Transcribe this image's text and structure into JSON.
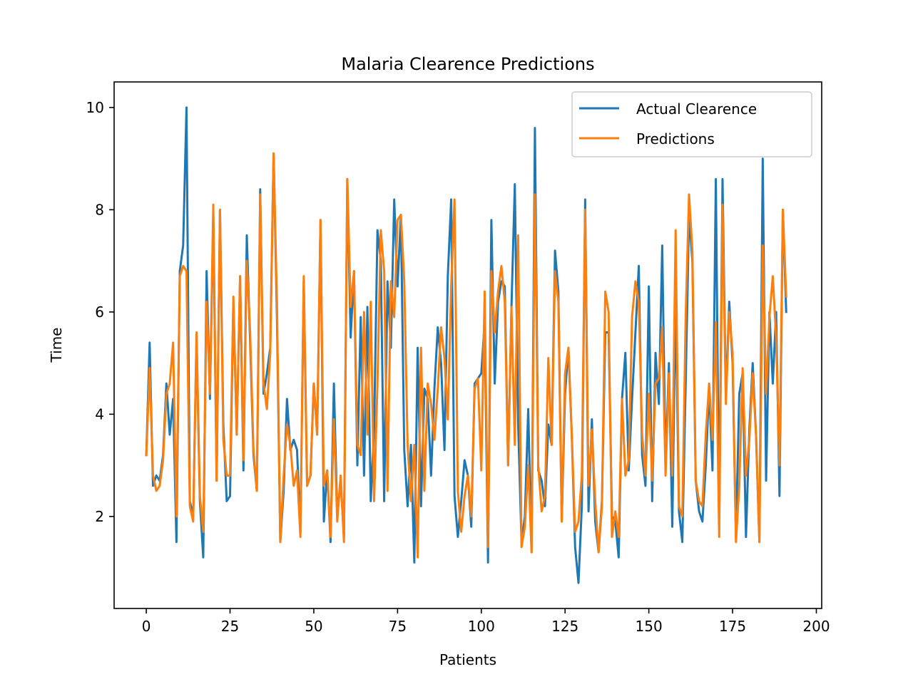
{
  "chart_data": {
    "type": "line",
    "title": "Malaria Clearence Predictions",
    "xlabel": "Patients",
    "ylabel": "Time",
    "xlim": [
      -9.6,
      201.6
    ],
    "ylim": [
      0.2,
      10.5
    ],
    "xticks": [
      0,
      25,
      50,
      75,
      100,
      125,
      150,
      175,
      200
    ],
    "yticks": [
      2,
      4,
      6,
      8,
      10
    ],
    "grid": false,
    "legend_position": "top-right",
    "series": [
      {
        "name": "Actual Clearence",
        "color": "#1f77b4",
        "values": [
          3.2,
          5.4,
          2.6,
          2.8,
          2.7,
          3.2,
          4.6,
          3.6,
          4.3,
          1.5,
          6.8,
          7.3,
          10.0,
          2.3,
          2.0,
          5.5,
          2.3,
          1.2,
          6.8,
          4.3,
          7.9,
          2.7,
          8.0,
          3.8,
          2.3,
          2.4,
          6.2,
          3.6,
          6.7,
          2.9,
          7.5,
          5.4,
          3.2,
          2.5,
          8.4,
          4.4,
          4.8,
          5.3,
          9.1,
          5.9,
          1.5,
          2.5,
          4.3,
          3.3,
          3.5,
          3.3,
          1.7,
          6.6,
          2.6,
          2.8,
          4.6,
          3.6,
          7.8,
          1.9,
          2.9,
          1.5,
          4.6,
          2.0,
          2.7,
          1.6,
          8.6,
          5.5,
          6.8,
          3.0,
          5.9,
          2.8,
          6.1,
          2.3,
          3.7,
          7.6,
          7.0,
          2.3,
          6.6,
          5.3,
          8.2,
          6.5,
          7.9,
          3.3,
          2.2,
          3.4,
          1.1,
          5.3,
          2.2,
          4.5,
          4.3,
          2.8,
          4.5,
          5.7,
          5.0,
          3.3,
          6.7,
          8.2,
          2.4,
          1.6,
          2.3,
          3.1,
          2.8,
          1.8,
          4.6,
          4.7,
          4.8,
          5.8,
          1.1,
          7.8,
          4.6,
          6.2,
          6.6,
          6.5,
          3.0,
          6.1,
          8.5,
          3.8,
          1.5,
          2.0,
          4.1,
          1.3,
          9.6,
          2.9,
          2.7,
          2.2,
          3.8,
          3.4,
          7.2,
          6.4,
          1.9,
          4.4,
          5.3,
          3.6,
          1.4,
          0.7,
          2.2,
          8.2,
          2.1,
          3.9,
          1.9,
          1.3,
          2.3,
          5.6,
          5.6,
          2.0,
          1.9,
          1.2,
          4.3,
          5.2,
          2.9,
          4.3,
          5.6,
          6.9,
          3.2,
          2.6,
          6.5,
          2.3,
          5.2,
          4.2,
          7.3,
          3.0,
          5.0,
          1.8,
          6.3,
          2.1,
          1.5,
          4.6,
          7.9,
          7.0,
          2.7,
          2.1,
          1.9,
          3.0,
          4.5,
          2.9,
          8.6,
          1.9,
          8.6,
          4.3,
          6.2,
          5.0,
          1.6,
          4.4,
          4.8,
          1.6,
          3.7,
          5.0,
          3.6,
          1.5,
          9.0,
          2.7,
          6.0,
          4.6,
          6.0,
          2.4,
          8.0,
          6.0
        ]
      },
      {
        "name": "Predictions",
        "color": "#ff7f0e",
        "values": [
          3.2,
          4.9,
          2.8,
          2.5,
          2.6,
          3.1,
          4.4,
          4.6,
          5.4,
          2.0,
          6.7,
          6.9,
          6.8,
          2.2,
          1.9,
          5.6,
          2.4,
          1.7,
          6.2,
          4.4,
          8.1,
          2.7,
          8.0,
          3.5,
          2.8,
          2.8,
          6.3,
          3.6,
          6.7,
          3.1,
          7.0,
          5.6,
          3.3,
          2.5,
          8.3,
          4.6,
          4.1,
          5.2,
          9.1,
          6.2,
          1.5,
          2.8,
          3.8,
          3.4,
          2.6,
          2.9,
          1.6,
          6.7,
          2.6,
          2.8,
          4.6,
          3.6,
          7.8,
          2.6,
          2.9,
          1.6,
          3.9,
          1.9,
          2.8,
          1.5,
          8.6,
          6.1,
          6.8,
          3.4,
          3.2,
          6.0,
          3.6,
          6.2,
          2.3,
          4.6,
          7.6,
          6.8,
          2.5,
          6.6,
          5.9,
          7.8,
          7.9,
          6.6,
          3.4,
          2.3,
          3.4,
          1.2,
          5.3,
          2.5,
          4.6,
          4.2,
          3.5,
          4.5,
          5.7,
          5.1,
          3.9,
          6.5,
          8.2,
          2.5,
          1.7,
          2.4,
          2.8,
          2.0,
          4.5,
          4.7,
          2.9,
          6.4,
          1.4,
          6.8,
          5.6,
          6.4,
          6.9,
          6.2,
          3.0,
          6.1,
          3.4,
          7.5,
          1.4,
          1.8,
          3.0,
          1.3,
          8.3,
          3.0,
          2.1,
          2.4,
          5.1,
          3.4,
          6.8,
          6.2,
          1.9,
          4.8,
          5.3,
          3.6,
          1.7,
          1.9,
          2.8,
          8.0,
          2.6,
          3.7,
          2.3,
          1.3,
          2.2,
          6.4,
          6.0,
          1.6,
          2.1,
          1.6,
          4.3,
          2.8,
          3.1,
          5.9,
          6.6,
          6.2,
          3.6,
          2.8,
          4.4,
          2.7,
          4.6,
          4.7,
          5.7,
          2.8,
          4.8,
          2.8,
          7.6,
          2.2,
          2.0,
          5.9,
          8.3,
          7.2,
          2.7,
          2.3,
          2.2,
          3.6,
          4.6,
          3.5,
          5.8,
          1.6,
          8.1,
          4.2,
          6.0,
          5.2,
          1.5,
          2.6,
          4.9,
          2.8,
          3.5,
          4.8,
          3.6,
          1.5,
          7.3,
          4.4,
          5.9,
          6.7,
          5.5,
          3.0,
          8.0,
          6.3
        ]
      }
    ]
  }
}
